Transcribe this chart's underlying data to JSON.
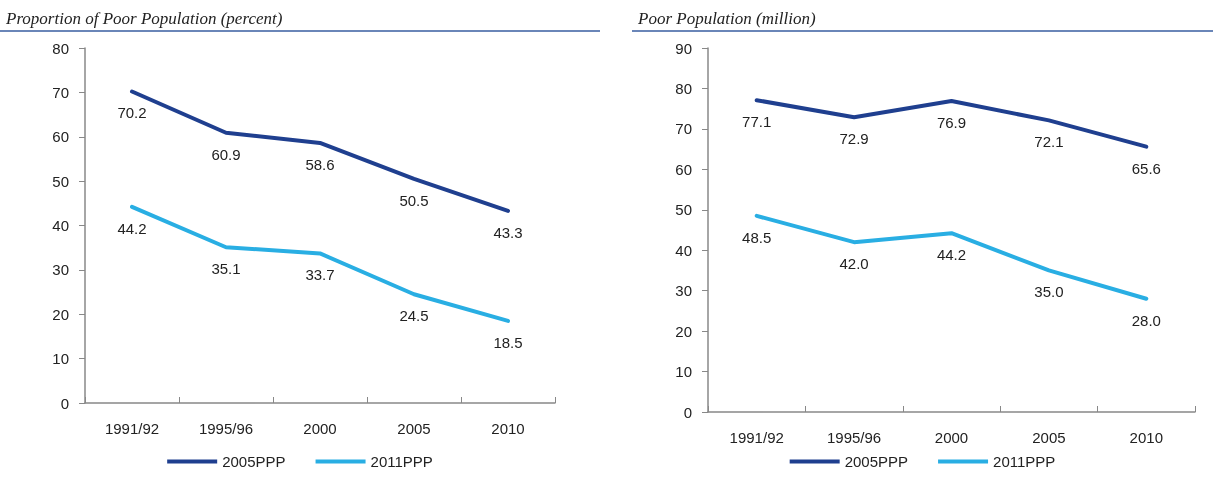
{
  "chart_data": [
    {
      "type": "line",
      "title": "Proportion of Poor Population (percent)",
      "categories": [
        "1991/92",
        "1995/96",
        "2000",
        "2005",
        "2010"
      ],
      "series": [
        {
          "name": "2005PPP",
          "color": "#1f3f8f",
          "values": [
            70.2,
            60.9,
            58.6,
            50.5,
            43.3
          ]
        },
        {
          "name": "2011PPP",
          "color": "#29aee3",
          "values": [
            44.2,
            35.1,
            33.7,
            24.5,
            18.5
          ]
        }
      ],
      "ylim": [
        0,
        80
      ],
      "yticks": [
        0,
        10,
        20,
        30,
        40,
        50,
        60,
        70,
        80
      ],
      "grid": false,
      "legend": "bottom",
      "marker": "none",
      "line_style": "solid",
      "data_labels": true
    },
    {
      "type": "line",
      "title": "Poor Population (million)",
      "categories": [
        "1991/92",
        "1995/96",
        "2000",
        "2005",
        "2010"
      ],
      "series": [
        {
          "name": "2005PPP",
          "color": "#1f3f8f",
          "values": [
            77.1,
            72.9,
            76.9,
            72.1,
            65.6
          ],
          "value_labels": [
            "77.1",
            "72.9",
            "76.9",
            "72.1",
            "65.6"
          ]
        },
        {
          "name": "2011PPP",
          "color": "#29aee3",
          "values": [
            48.5,
            42.0,
            44.2,
            35.0,
            28.0
          ],
          "value_labels": [
            "48.5",
            "42.0",
            "44.2",
            "35.0",
            "28.0"
          ]
        }
      ],
      "ylim": [
        0,
        90
      ],
      "yticks": [
        0,
        10,
        20,
        30,
        40,
        50,
        60,
        70,
        80,
        90
      ],
      "grid": false,
      "legend": "bottom",
      "marker": "none",
      "line_style": "solid"
    }
  ]
}
